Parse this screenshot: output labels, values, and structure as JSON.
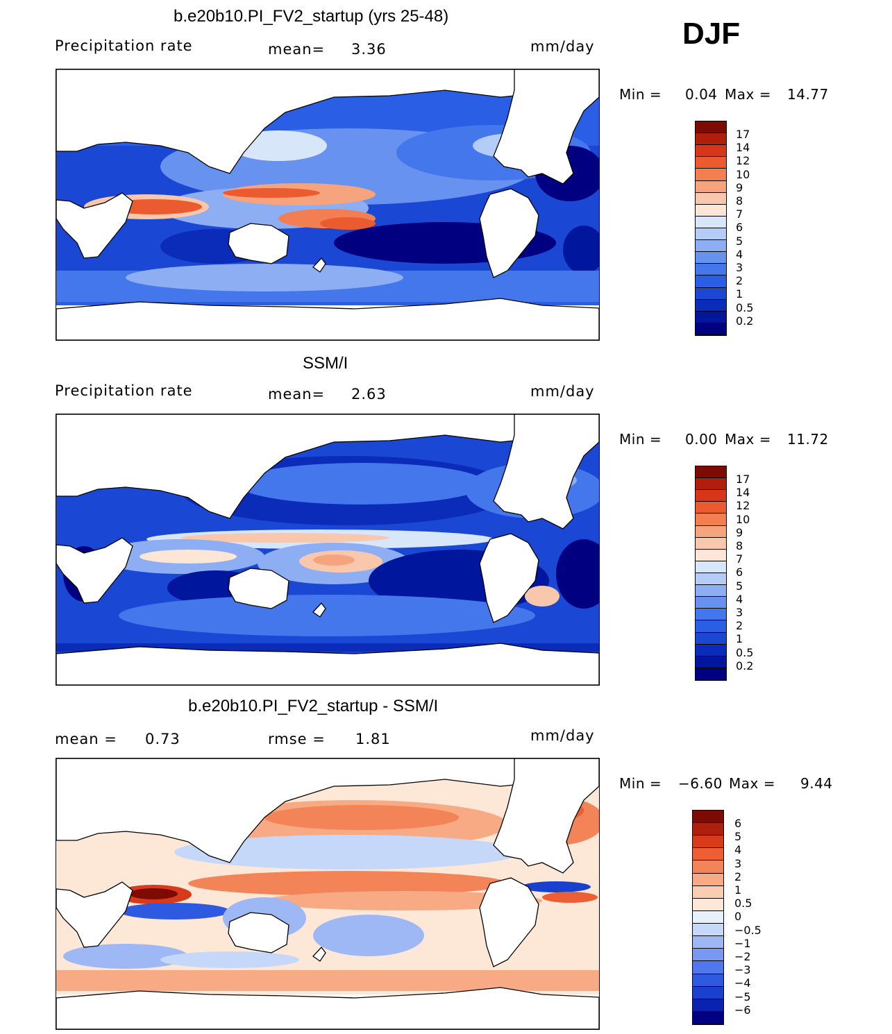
{
  "season": "DJF",
  "palette_seq": [
    "#000080",
    "#00169c",
    "#0a2cb8",
    "#1a48d4",
    "#2a5ee4",
    "#4477ec",
    "#6892f0",
    "#8eaef4",
    "#b4ccf8",
    "#d8e6fa",
    "#fde6d6",
    "#f9c8ac",
    "#f6a47e",
    "#f27e52",
    "#ec5a30",
    "#d6371a",
    "#b01e0c",
    "#7e0a04"
  ],
  "palette_div": [
    "#000080",
    "#0a22b0",
    "#1a40d0",
    "#2e5ae2",
    "#5078ec",
    "#7898f2",
    "#9eb8f6",
    "#c6d8fa",
    "#e8f0fc",
    "#fde8d8",
    "#fbcdb0",
    "#f7aa84",
    "#f28458",
    "#ec5e34",
    "#d83a1c",
    "#b01e0c",
    "#7e0a04"
  ],
  "panels": [
    {
      "title": "b.e20b10.PI_FV2_startup (yrs 25-48)",
      "field": "Precipitation rate",
      "stat1_label": "mean=",
      "stat1_value": "3.36",
      "units": "mm/day",
      "min_label": "Min =",
      "min_value": "0.04",
      "max_label": "Max =",
      "max_value": "14.77",
      "cbar_labels": [
        "17",
        "14",
        "12",
        "10",
        "9",
        "8",
        "7",
        "6",
        "5",
        "4",
        "3",
        "2",
        "1",
        "0.5",
        "0.2"
      ]
    },
    {
      "title": "SSM/I",
      "field": "Precipitation rate",
      "stat1_label": "mean=",
      "stat1_value": "2.63",
      "units": "mm/day",
      "min_label": "Min =",
      "min_value": "0.00",
      "max_label": "Max =",
      "max_value": "11.72",
      "cbar_labels": [
        "17",
        "14",
        "12",
        "10",
        "9",
        "8",
        "7",
        "6",
        "5",
        "4",
        "3",
        "2",
        "1",
        "0.5",
        "0.2"
      ]
    },
    {
      "title": "b.e20b10.PI_FV2_startup - SSM/I",
      "stat1_label": "mean =",
      "stat1_value": "0.73",
      "stat2_label": "rmse =",
      "stat2_value": "1.81",
      "units": "mm/day",
      "min_label": "Min =",
      "min_value": "−6.60",
      "max_label": "Max =",
      "max_value": "9.44",
      "cbar_labels": [
        "6",
        "5",
        "4",
        "3",
        "2",
        "1",
        "0.5",
        "0",
        "−0.5",
        "−1",
        "−2",
        "−3",
        "−4",
        "−5",
        "−6"
      ]
    }
  ]
}
